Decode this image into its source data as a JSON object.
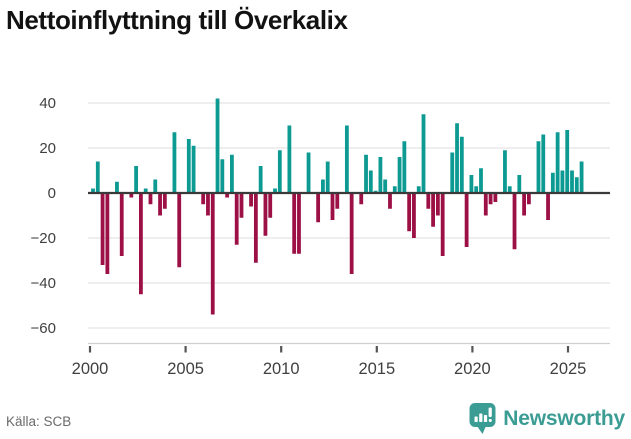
{
  "header": {
    "title": "Nettoinflyttning till Överkalix"
  },
  "footer": {
    "source": "Källa: SCB",
    "logo_text": "Newsworthy"
  },
  "colors": {
    "positive": "#0d9a92",
    "negative": "#9c1045",
    "logo": "#3b9c94",
    "zero_line": "#3a3a3a",
    "grid": "#e4e4e4",
    "spine": "#cfcfcf",
    "tick": "#555555",
    "axis_text": "#404040"
  },
  "chart_data": {
    "type": "bar",
    "title": "Nettoinflyttning till Överkalix",
    "frequency": "quarterly",
    "start_period": "2000 Q1",
    "end_period": "2025 Q3",
    "values": [
      2,
      14,
      -32,
      -36,
      0,
      5,
      -28,
      0,
      -2,
      12,
      -45,
      2,
      -5,
      6,
      -10,
      -7,
      0,
      27,
      -33,
      0,
      24,
      21,
      0,
      -5,
      -10,
      -54,
      42,
      15,
      -2,
      17,
      -23,
      -11,
      0,
      -6,
      -31,
      12,
      -19,
      -11,
      2,
      19,
      0,
      30,
      -27,
      -27,
      0,
      18,
      0,
      -13,
      6,
      14,
      -12,
      -7,
      0,
      30,
      -36,
      0,
      -5,
      17,
      10,
      1,
      16,
      6,
      -7,
      3,
      16,
      23,
      -17,
      -20,
      3,
      35,
      -7,
      -15,
      -10,
      -28,
      0,
      18,
      31,
      25,
      -24,
      8,
      3,
      11,
      -10,
      -5,
      -4,
      0,
      19,
      3,
      -25,
      8,
      -10,
      -5,
      0,
      23,
      26,
      -12,
      9,
      27,
      10,
      28,
      10,
      7,
      14
    ],
    "xticks": [
      2000,
      2005,
      2010,
      2015,
      2020,
      2025
    ],
    "yticks": [
      {
        "label": "40",
        "value": 40
      },
      {
        "label": "20",
        "value": 20
      },
      {
        "label": "0",
        "value": 0
      },
      {
        "label": "−20",
        "value": -20
      },
      {
        "label": "−40",
        "value": -40
      },
      {
        "label": "−60",
        "value": -60
      }
    ],
    "ylim": [
      -65,
      46
    ],
    "xlabel": "",
    "ylabel": "",
    "grid": true,
    "legend_position": "none",
    "positive_color": "#0d9a92",
    "negative_color": "#9c1045",
    "source": "Källa: SCB"
  }
}
